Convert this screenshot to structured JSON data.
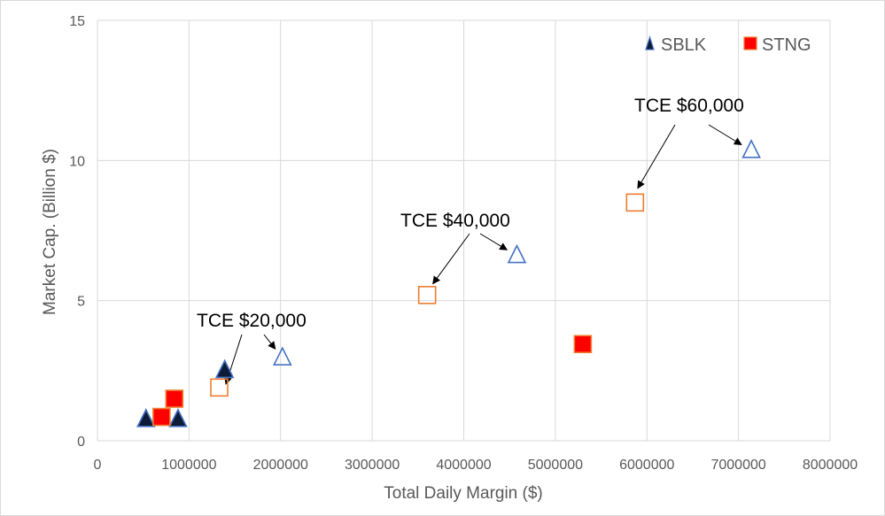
{
  "chart_data": {
    "type": "scatter",
    "title": "",
    "xlabel": "Total Daily Margin ($)",
    "ylabel": "Market Cap. (Billion $)",
    "xlim": [
      0,
      8000000
    ],
    "ylim": [
      0,
      15
    ],
    "x_ticks": [
      "0",
      "1000000",
      "2000000",
      "3000000",
      "4000000",
      "5000000",
      "6000000",
      "7000000",
      "8000000"
    ],
    "y_ticks": [
      "0",
      "5",
      "10",
      "15"
    ],
    "grid": true,
    "legend_position": "top-right",
    "series": [
      {
        "name": "SBLK",
        "marker": "triangle",
        "color": "#0d1b36",
        "edge_color": "#4472c4",
        "points": [
          {
            "x": 530000,
            "y": 0.75
          },
          {
            "x": 880000,
            "y": 0.75
          },
          {
            "x": 1390000,
            "y": 2.5
          }
        ]
      },
      {
        "name": "STNG",
        "marker": "square",
        "color": "#ff0000",
        "edge_color": "#ed7d31",
        "points": [
          {
            "x": 700000,
            "y": 0.85
          },
          {
            "x": 840000,
            "y": 1.5
          },
          {
            "x": 5300000,
            "y": 3.45
          }
        ]
      }
    ],
    "tce_points": [
      {
        "series": "SBLK",
        "x": 2020000,
        "y": 2.95
      },
      {
        "series": "STNG",
        "x": 1330000,
        "y": 1.9
      },
      {
        "series": "SBLK",
        "x": 4580000,
        "y": 6.6
      },
      {
        "series": "STNG",
        "x": 3600000,
        "y": 5.2
      },
      {
        "series": "SBLK",
        "x": 7140000,
        "y": 10.35
      },
      {
        "series": "STNG",
        "x": 5870000,
        "y": 8.5
      }
    ],
    "annotations": [
      {
        "text": "TCE $20,000",
        "targets": [
          [
            2020000,
            2.95
          ],
          [
            1390000,
            1.9
          ]
        ]
      },
      {
        "text": "TCE $40,000",
        "targets": [
          [
            4580000,
            6.6
          ],
          [
            3640000,
            5.5
          ]
        ]
      },
      {
        "text": "TCE $60,000",
        "targets": [
          [
            7140000,
            10.35
          ],
          [
            5880000,
            8.9
          ]
        ]
      }
    ]
  }
}
